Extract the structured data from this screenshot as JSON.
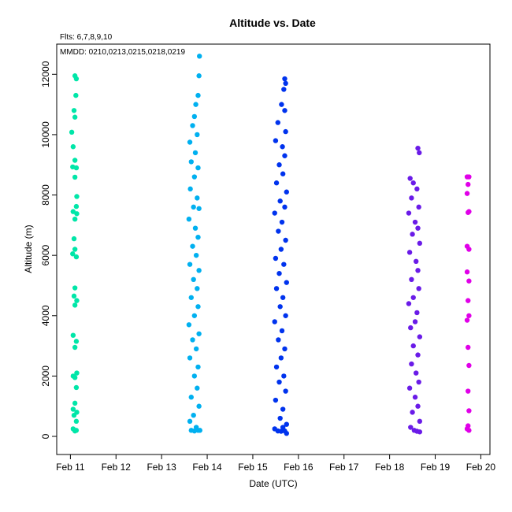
{
  "chart_data": {
    "type": "scatter",
    "title": "Altitude  vs. Date",
    "annotations": [
      "Flts: 6,7,8,9,10",
      "MMDD: 0210,0213,0215,0218,0219"
    ],
    "xlabel": "Date (UTC)",
    "ylabel": "Altitude (m)",
    "x_ticks": [
      "Feb 11",
      "Feb 12",
      "Feb 13",
      "Feb 14",
      "Feb 15",
      "Feb 16",
      "Feb 17",
      "Feb 18",
      "Feb 19",
      "Feb 20"
    ],
    "y_ticks": [
      "0",
      "2000",
      "4000",
      "6000",
      "8000",
      "10000",
      "12000"
    ],
    "xlim_days": [
      10.7,
      20.2
    ],
    "ylim": [
      -600,
      13000
    ],
    "grid": false,
    "legend": "none",
    "series": [
      {
        "color": "#00e6a8",
        "x_range": [
          11.0,
          11.2
        ],
        "points": [
          [
            11.1,
            11950
          ],
          [
            11.13,
            11850
          ],
          [
            11.12,
            11300
          ],
          [
            11.08,
            10800
          ],
          [
            11.1,
            10580
          ],
          [
            11.03,
            10080
          ],
          [
            11.06,
            9600
          ],
          [
            11.1,
            9150
          ],
          [
            11.05,
            8930
          ],
          [
            11.13,
            8900
          ],
          [
            11.1,
            8590
          ],
          [
            11.14,
            7950
          ],
          [
            11.13,
            7620
          ],
          [
            11.06,
            7450
          ],
          [
            11.14,
            7380
          ],
          [
            11.1,
            7200
          ],
          [
            11.08,
            6550
          ],
          [
            11.1,
            6200
          ],
          [
            11.05,
            6050
          ],
          [
            11.13,
            5950
          ],
          [
            11.1,
            4920
          ],
          [
            11.08,
            4650
          ],
          [
            11.14,
            4500
          ],
          [
            11.1,
            4350
          ],
          [
            11.06,
            3350
          ],
          [
            11.13,
            3150
          ],
          [
            11.1,
            2950
          ],
          [
            11.14,
            2100
          ],
          [
            11.06,
            2000
          ],
          [
            11.1,
            1950
          ],
          [
            11.13,
            1620
          ],
          [
            11.1,
            1100
          ],
          [
            11.06,
            900
          ],
          [
            11.14,
            800
          ],
          [
            11.08,
            700
          ],
          [
            11.13,
            500
          ],
          [
            11.06,
            250
          ],
          [
            11.1,
            180
          ],
          [
            11.13,
            200
          ]
        ]
      },
      {
        "color": "#00b0f0",
        "x_range": [
          13.5,
          13.9
        ],
        "points": [
          [
            13.83,
            12600
          ],
          [
            13.82,
            11950
          ],
          [
            13.8,
            11300
          ],
          [
            13.75,
            11000
          ],
          [
            13.72,
            10600
          ],
          [
            13.68,
            10300
          ],
          [
            13.78,
            10000
          ],
          [
            13.62,
            9750
          ],
          [
            13.74,
            9400
          ],
          [
            13.65,
            9100
          ],
          [
            13.8,
            8900
          ],
          [
            13.72,
            8600
          ],
          [
            13.63,
            8200
          ],
          [
            13.78,
            7900
          ],
          [
            13.7,
            7600
          ],
          [
            13.82,
            7550
          ],
          [
            13.6,
            7200
          ],
          [
            13.74,
            6900
          ],
          [
            13.8,
            6600
          ],
          [
            13.68,
            6300
          ],
          [
            13.76,
            6000
          ],
          [
            13.62,
            5700
          ],
          [
            13.82,
            5500
          ],
          [
            13.7,
            5200
          ],
          [
            13.78,
            4900
          ],
          [
            13.65,
            4600
          ],
          [
            13.8,
            4300
          ],
          [
            13.72,
            4000
          ],
          [
            13.6,
            3700
          ],
          [
            13.82,
            3400
          ],
          [
            13.68,
            3200
          ],
          [
            13.76,
            2900
          ],
          [
            13.62,
            2600
          ],
          [
            13.8,
            2300
          ],
          [
            13.72,
            2000
          ],
          [
            13.78,
            1600
          ],
          [
            13.65,
            1300
          ],
          [
            13.82,
            1000
          ],
          [
            13.7,
            700
          ],
          [
            13.62,
            500
          ],
          [
            13.76,
            300
          ],
          [
            13.65,
            200
          ],
          [
            13.72,
            180
          ],
          [
            13.8,
            200
          ],
          [
            13.84,
            200
          ]
        ]
      },
      {
        "color": "#0033ee",
        "x_range": [
          15.4,
          15.75
        ],
        "points": [
          [
            15.7,
            11850
          ],
          [
            15.72,
            11700
          ],
          [
            15.68,
            11500
          ],
          [
            15.63,
            11000
          ],
          [
            15.7,
            10800
          ],
          [
            15.55,
            10400
          ],
          [
            15.72,
            10100
          ],
          [
            15.5,
            9800
          ],
          [
            15.65,
            9600
          ],
          [
            15.7,
            9300
          ],
          [
            15.58,
            9000
          ],
          [
            15.66,
            8700
          ],
          [
            15.52,
            8400
          ],
          [
            15.74,
            8100
          ],
          [
            15.6,
            7800
          ],
          [
            15.7,
            7600
          ],
          [
            15.48,
            7400
          ],
          [
            15.64,
            7100
          ],
          [
            15.56,
            6800
          ],
          [
            15.72,
            6500
          ],
          [
            15.62,
            6200
          ],
          [
            15.5,
            5900
          ],
          [
            15.68,
            5700
          ],
          [
            15.58,
            5400
          ],
          [
            15.74,
            5100
          ],
          [
            15.52,
            4900
          ],
          [
            15.66,
            4600
          ],
          [
            15.6,
            4300
          ],
          [
            15.72,
            4000
          ],
          [
            15.48,
            3800
          ],
          [
            15.64,
            3500
          ],
          [
            15.56,
            3200
          ],
          [
            15.7,
            2900
          ],
          [
            15.62,
            2600
          ],
          [
            15.52,
            2300
          ],
          [
            15.68,
            2000
          ],
          [
            15.58,
            1800
          ],
          [
            15.72,
            1500
          ],
          [
            15.5,
            1200
          ],
          [
            15.66,
            900
          ],
          [
            15.6,
            600
          ],
          [
            15.74,
            400
          ],
          [
            15.48,
            250
          ],
          [
            15.55,
            180
          ],
          [
            15.62,
            170
          ],
          [
            15.7,
            180
          ],
          [
            15.74,
            100
          ],
          [
            15.66,
            300
          ]
        ]
      },
      {
        "color": "#6a1be8",
        "x_range": [
          18.4,
          18.7
        ],
        "points": [
          [
            18.62,
            9550
          ],
          [
            18.65,
            9400
          ],
          [
            18.45,
            8550
          ],
          [
            18.52,
            8400
          ],
          [
            18.6,
            8200
          ],
          [
            18.48,
            7900
          ],
          [
            18.64,
            7600
          ],
          [
            18.42,
            7400
          ],
          [
            18.56,
            7100
          ],
          [
            18.62,
            6900
          ],
          [
            18.5,
            6700
          ],
          [
            18.66,
            6400
          ],
          [
            18.44,
            6100
          ],
          [
            18.58,
            5800
          ],
          [
            18.62,
            5500
          ],
          [
            18.48,
            5200
          ],
          [
            18.64,
            4900
          ],
          [
            18.52,
            4600
          ],
          [
            18.42,
            4400
          ],
          [
            18.6,
            4100
          ],
          [
            18.56,
            3800
          ],
          [
            18.46,
            3600
          ],
          [
            18.66,
            3300
          ],
          [
            18.52,
            3000
          ],
          [
            18.62,
            2700
          ],
          [
            18.48,
            2400
          ],
          [
            18.58,
            2100
          ],
          [
            18.64,
            1800
          ],
          [
            18.44,
            1600
          ],
          [
            18.56,
            1300
          ],
          [
            18.62,
            1000
          ],
          [
            18.5,
            800
          ],
          [
            18.66,
            500
          ],
          [
            18.46,
            300
          ],
          [
            18.54,
            200
          ],
          [
            18.6,
            170
          ],
          [
            18.66,
            150
          ]
        ]
      },
      {
        "color": "#e000e8",
        "x_range": [
          19.65,
          19.8
        ],
        "points": [
          [
            19.7,
            8600
          ],
          [
            19.74,
            8600
          ],
          [
            19.72,
            8350
          ],
          [
            19.7,
            8050
          ],
          [
            19.74,
            7450
          ],
          [
            19.72,
            7420
          ],
          [
            19.7,
            6300
          ],
          [
            19.74,
            6200
          ],
          [
            19.7,
            5450
          ],
          [
            19.74,
            5150
          ],
          [
            19.72,
            4500
          ],
          [
            19.74,
            4000
          ],
          [
            19.7,
            3850
          ],
          [
            19.72,
            2950
          ],
          [
            19.74,
            2350
          ],
          [
            19.72,
            1500
          ],
          [
            19.74,
            850
          ],
          [
            19.72,
            350
          ],
          [
            19.7,
            250
          ],
          [
            19.74,
            200
          ]
        ]
      }
    ]
  }
}
